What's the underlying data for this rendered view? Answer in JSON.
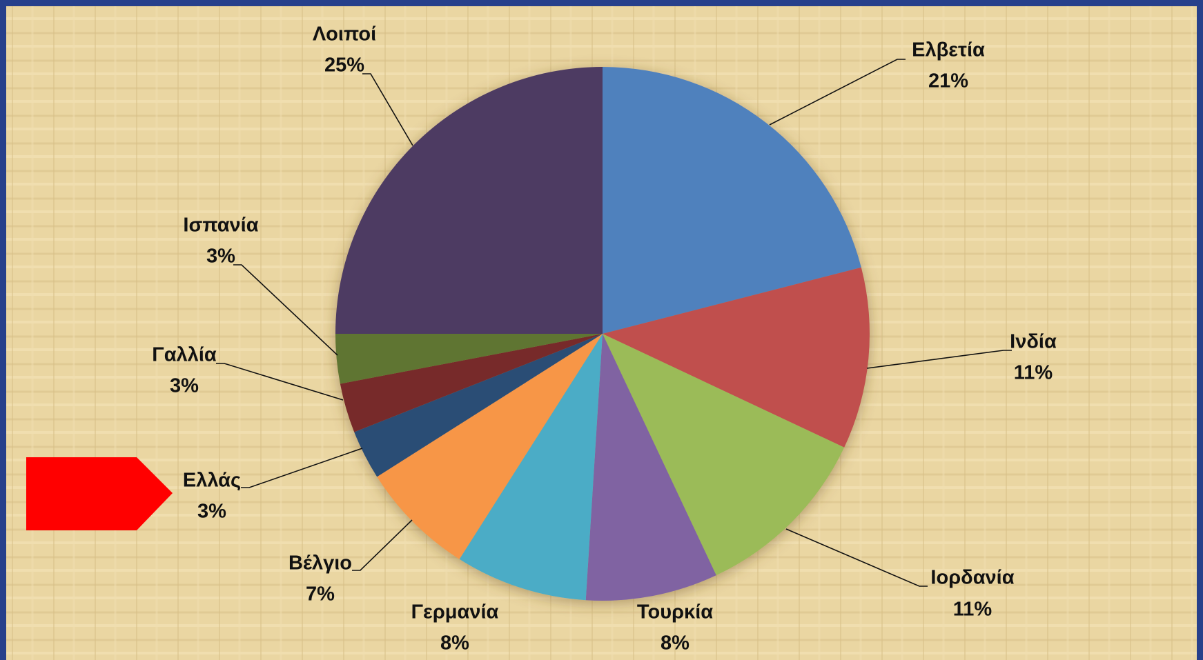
{
  "chart_data": {
    "type": "pie",
    "categories": [
      "Ελβετία",
      "Ινδία",
      "Ιορδανία",
      "Τουρκία",
      "Γερμανία",
      "Βέλγιο",
      "Ελλάς",
      "Γαλλία",
      "Ισπανία",
      "Λοιποί"
    ],
    "values": [
      21,
      11,
      11,
      8,
      8,
      7,
      3,
      3,
      3,
      25
    ],
    "value_labels": [
      "21%",
      "11%",
      "11%",
      "8%",
      "8%",
      "7%",
      "3%",
      "3%",
      "3%",
      "25%"
    ],
    "colors": [
      "#4f81bd",
      "#c0504d",
      "#9bbb59",
      "#8064a2",
      "#4bacc6",
      "#f79646",
      "#2c4d75",
      "#772c2a",
      "#5f7530",
      "#4d3b62"
    ]
  }
}
